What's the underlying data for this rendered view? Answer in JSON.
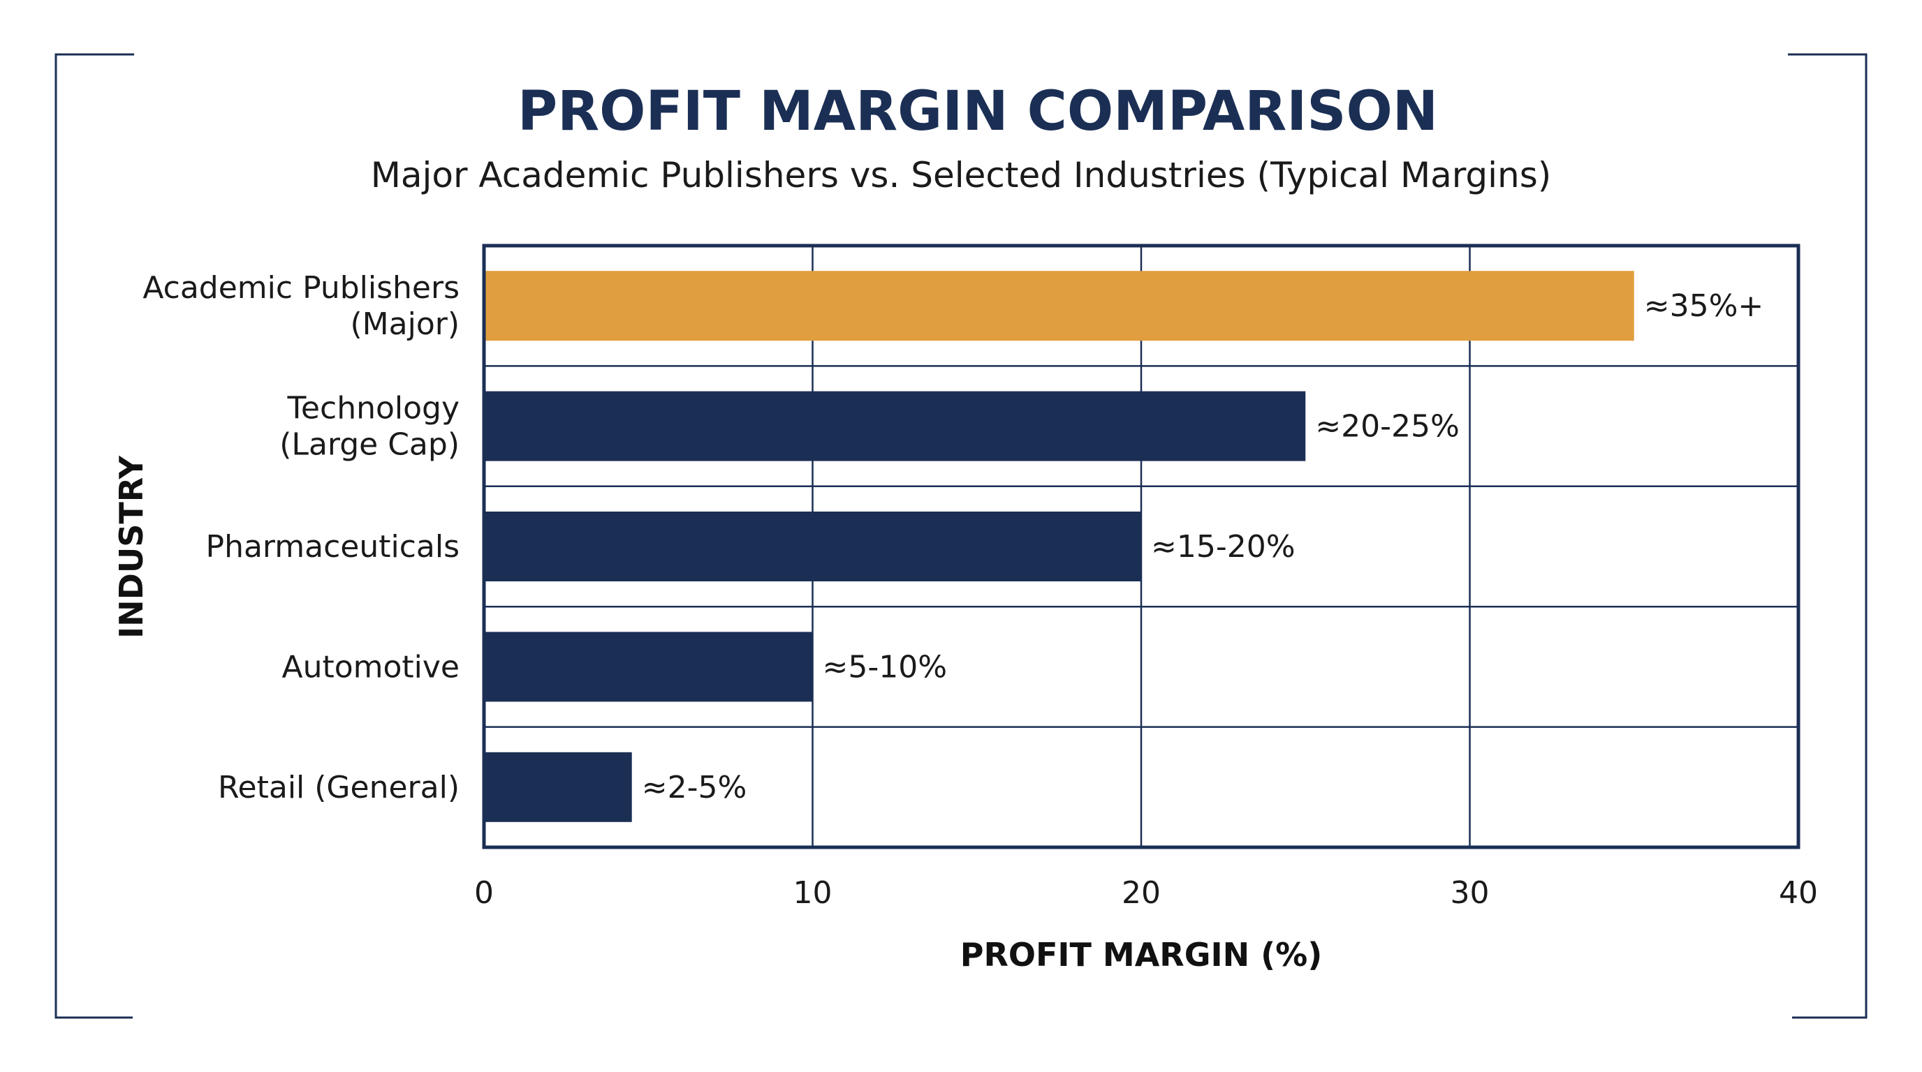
{
  "chart_data": {
    "type": "bar",
    "orientation": "horizontal",
    "title": "PROFIT MARGIN COMPARISON",
    "subtitle": "Major Academic Publishers vs. Selected Industries (Typical Margins)",
    "xlabel": "PROFIT MARGIN (%)",
    "ylabel": "INDUSTRY",
    "xlim": [
      0,
      40
    ],
    "xticks": [
      "0",
      "10",
      "20",
      "30",
      "40"
    ],
    "grid": true,
    "categories": [
      [
        "Academic Publishers",
        "(Major)"
      ],
      [
        "Technology",
        "(Large Cap)"
      ],
      [
        "Pharmaceuticals"
      ],
      [
        "Automotive"
      ],
      [
        "Retail (General)"
      ]
    ],
    "values": [
      35,
      25,
      20,
      10,
      4.5
    ],
    "data_labels": [
      "≈35%+",
      "≈20-25%",
      "≈15-20%",
      "≈5-10%",
      "≈2-5%"
    ],
    "bar_colors": [
      "#e09e3e",
      "#1b2f55",
      "#1b2f55",
      "#1b2f55",
      "#1b2f55"
    ]
  },
  "colors": {
    "accent": "#e09e3e",
    "primary": "#1b2f55",
    "frame": "#1b2f55"
  }
}
